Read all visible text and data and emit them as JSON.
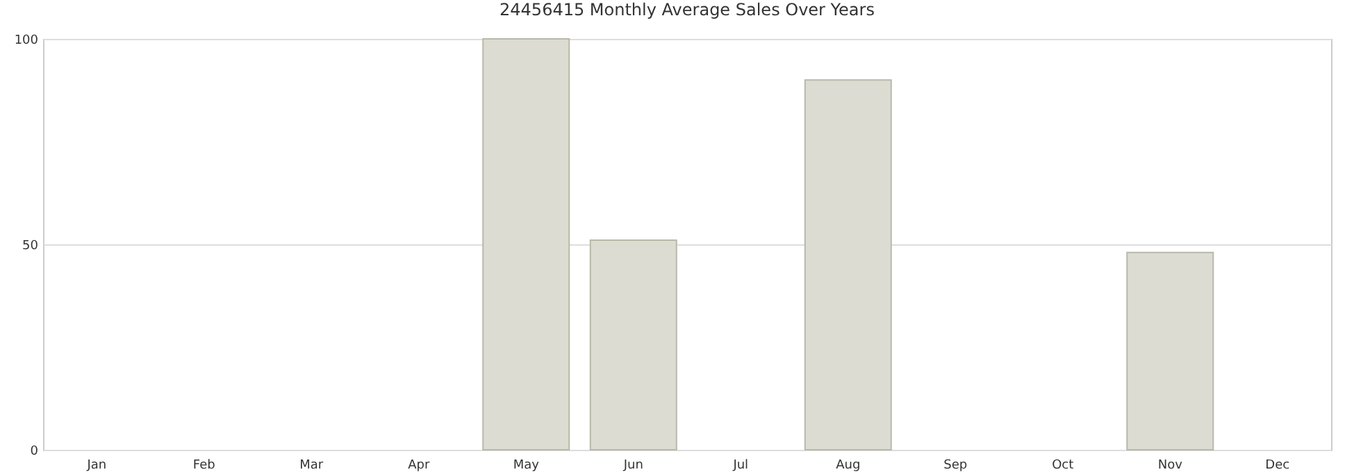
{
  "chart_data": {
    "type": "bar",
    "title": "24456415 Monthly Average Sales Over Years",
    "categories": [
      "Jan",
      "Feb",
      "Mar",
      "Apr",
      "May",
      "Jun",
      "Jul",
      "Aug",
      "Sep",
      "Oct",
      "Nov",
      "Dec"
    ],
    "values": [
      null,
      null,
      null,
      null,
      100,
      51,
      null,
      90,
      null,
      null,
      48,
      null
    ],
    "color": "#dcdcd2",
    "ylim": [
      0,
      100
    ],
    "yticks": [
      0,
      50,
      100
    ],
    "grid": "y"
  }
}
